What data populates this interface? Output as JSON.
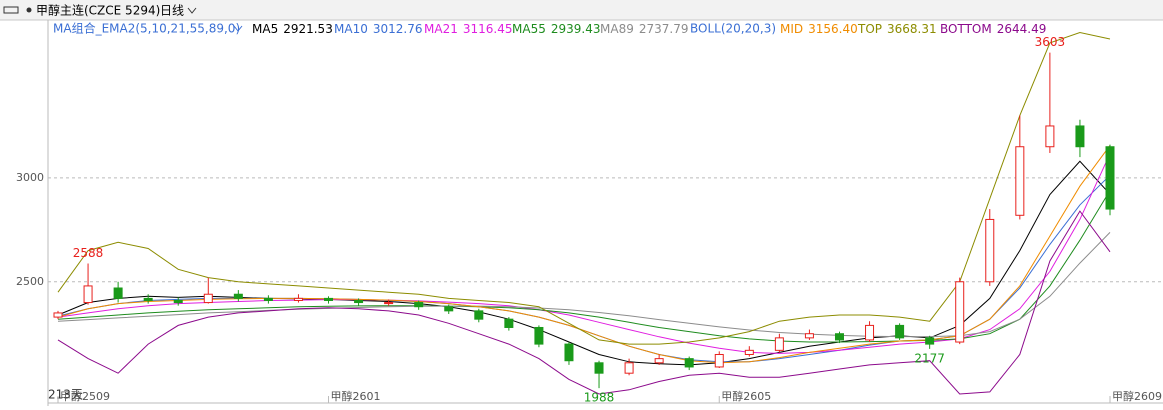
{
  "chart_data": {
    "type": "candlestick",
    "title": "甲醇主连(CZCE 5294)",
    "period": "日线",
    "ma_label": "MA组合_EMA2(5,10,21,55,89,0)",
    "boll_label": "BOLL(20,20,3)",
    "count_label": "213天",
    "up_color": "#e8201c",
    "down_color": "#1a9a1a",
    "ylim": [
      1955,
      3760
    ],
    "yticks": [
      2500,
      3000
    ],
    "grid": true,
    "categories": [
      "甲醇2509",
      null,
      null,
      null,
      null,
      null,
      null,
      null,
      null,
      "甲醇2601",
      null,
      null,
      null,
      null,
      null,
      null,
      null,
      null,
      null,
      null,
      null,
      null,
      "甲醇2605",
      null,
      null,
      null,
      null,
      null,
      null,
      null,
      null,
      null,
      null,
      null,
      null,
      "甲醇2609"
    ],
    "open": [
      2330,
      2400,
      2470,
      2420,
      2410,
      2400,
      2440,
      2420,
      2410,
      2420,
      2410,
      2395,
      2400,
      2380,
      2360,
      2320,
      2280,
      2200,
      2110,
      2060,
      2110,
      2130,
      2090,
      2150,
      2170,
      2230,
      2250,
      2220,
      2290,
      2230,
      2210,
      2500,
      2820,
      3150,
      3250,
      3150
    ],
    "high": [
      2360,
      2588,
      2500,
      2440,
      2425,
      2520,
      2460,
      2435,
      2440,
      2430,
      2420,
      2415,
      2410,
      2390,
      2370,
      2330,
      2290,
      2210,
      2120,
      2130,
      2150,
      2140,
      2165,
      2190,
      2250,
      2270,
      2260,
      2310,
      2300,
      2240,
      2520,
      2850,
      3300,
      3603,
      3280,
      3160
    ],
    "low": [
      2320,
      2390,
      2400,
      2395,
      2385,
      2395,
      2405,
      2395,
      2400,
      2395,
      2385,
      2385,
      2365,
      2345,
      2305,
      2265,
      2185,
      2100,
      1988,
      2050,
      2100,
      2075,
      2085,
      2140,
      2160,
      2220,
      2205,
      2210,
      2220,
      2177,
      2200,
      2480,
      2800,
      3120,
      3100,
      2820
    ],
    "close": [
      2350,
      2480,
      2420,
      2410,
      2400,
      2440,
      2420,
      2410,
      2420,
      2410,
      2400,
      2400,
      2380,
      2360,
      2320,
      2280,
      2200,
      2120,
      2060,
      2110,
      2130,
      2090,
      2150,
      2170,
      2230,
      2250,
      2220,
      2290,
      2230,
      2200,
      2500,
      2800,
      3150,
      3250,
      3150,
      2850
    ],
    "series": [
      {
        "name": "MA5",
        "color": "#000000",
        "current": 2921.53,
        "values": [
          2340,
          2400,
          2420,
          2430,
          2425,
          2430,
          2425,
          2420,
          2418,
          2415,
          2410,
          2405,
          2395,
          2380,
          2355,
          2320,
          2270,
          2210,
          2150,
          2115,
          2105,
          2100,
          2110,
          2130,
          2160,
          2190,
          2210,
          2230,
          2240,
          2230,
          2290,
          2420,
          2650,
          2920,
          3080,
          2921.53
        ]
      },
      {
        "name": "MA10",
        "color": "#3b6fd4",
        "current": 3012.76,
        "values": [
          2335,
          2370,
          2395,
          2410,
          2415,
          2420,
          2420,
          2420,
          2420,
          2418,
          2415,
          2410,
          2405,
          2395,
          2380,
          2360,
          2330,
          2290,
          2240,
          2190,
          2150,
          2125,
          2115,
          2115,
          2130,
          2150,
          2170,
          2195,
          2215,
          2220,
          2240,
          2320,
          2470,
          2680,
          2870,
          3012.76
        ]
      },
      {
        "name": "MA21",
        "color": "#e01ee0",
        "current": 3116.45,
        "values": [
          2330,
          2350,
          2370,
          2385,
          2395,
          2400,
          2405,
          2410,
          2412,
          2414,
          2414,
          2412,
          2408,
          2402,
          2395,
          2385,
          2365,
          2340,
          2305,
          2270,
          2235,
          2205,
          2180,
          2160,
          2155,
          2160,
          2170,
          2185,
          2200,
          2210,
          2225,
          2270,
          2370,
          2550,
          2800,
          3116.45
        ]
      },
      {
        "name": "MA55",
        "color": "#1e8c1e",
        "current": 2939.43,
        "values": [
          2320,
          2330,
          2340,
          2350,
          2358,
          2365,
          2370,
          2375,
          2380,
          2382,
          2384,
          2385,
          2385,
          2383,
          2380,
          2375,
          2365,
          2350,
          2330,
          2305,
          2280,
          2260,
          2240,
          2225,
          2215,
          2210,
          2210,
          2212,
          2215,
          2218,
          2225,
          2250,
          2320,
          2480,
          2700,
          2939.43
        ]
      },
      {
        "name": "MA89",
        "color": "#8c8c8c",
        "current": 2737.79,
        "values": [
          2310,
          2318,
          2326,
          2334,
          2342,
          2350,
          2356,
          2362,
          2368,
          2372,
          2376,
          2380,
          2382,
          2383,
          2383,
          2380,
          2374,
          2365,
          2352,
          2336,
          2318,
          2300,
          2283,
          2268,
          2256,
          2248,
          2242,
          2238,
          2236,
          2236,
          2240,
          2260,
          2320,
          2430,
          2590,
          2737.79
        ]
      },
      {
        "name": "MID",
        "color": "#f08c00",
        "current": {
          "value": 3156.4,
          "label": "3156.40"
        },
        "values": [
          2330,
          2370,
          2395,
          2405,
          2410,
          2415,
          2418,
          2420,
          2420,
          2418,
          2415,
          2412,
          2405,
          2395,
          2380,
          2360,
          2330,
          2290,
          2240,
          2190,
          2150,
          2120,
          2110,
          2115,
          2135,
          2160,
          2180,
          2200,
          2215,
          2220,
          2240,
          2320,
          2480,
          2720,
          2960,
          3156.4
        ]
      },
      {
        "name": "TOP",
        "color": "#8c8c00",
        "current": 3668.31,
        "values": [
          2450,
          2650,
          2690,
          2660,
          2560,
          2520,
          2500,
          2490,
          2480,
          2470,
          2460,
          2450,
          2440,
          2420,
          2410,
          2400,
          2380,
          2300,
          2220,
          2200,
          2200,
          2210,
          2230,
          2260,
          2310,
          2330,
          2340,
          2340,
          2330,
          2310,
          2500,
          2900,
          3300,
          3650,
          3700,
          3668.31
        ]
      },
      {
        "name": "BOTTOM",
        "color": "#8c0a8c",
        "current": 2644.49,
        "values": [
          2220,
          2130,
          2060,
          2200,
          2290,
          2330,
          2350,
          2360,
          2370,
          2375,
          2370,
          2360,
          2340,
          2300,
          2250,
          2200,
          2130,
          2030,
          1960,
          1980,
          2020,
          2050,
          2060,
          2040,
          2040,
          2060,
          2080,
          2100,
          2110,
          2120,
          1960,
          1970,
          2150,
          2600,
          2840,
          2644.49
        ]
      }
    ]
  }
}
